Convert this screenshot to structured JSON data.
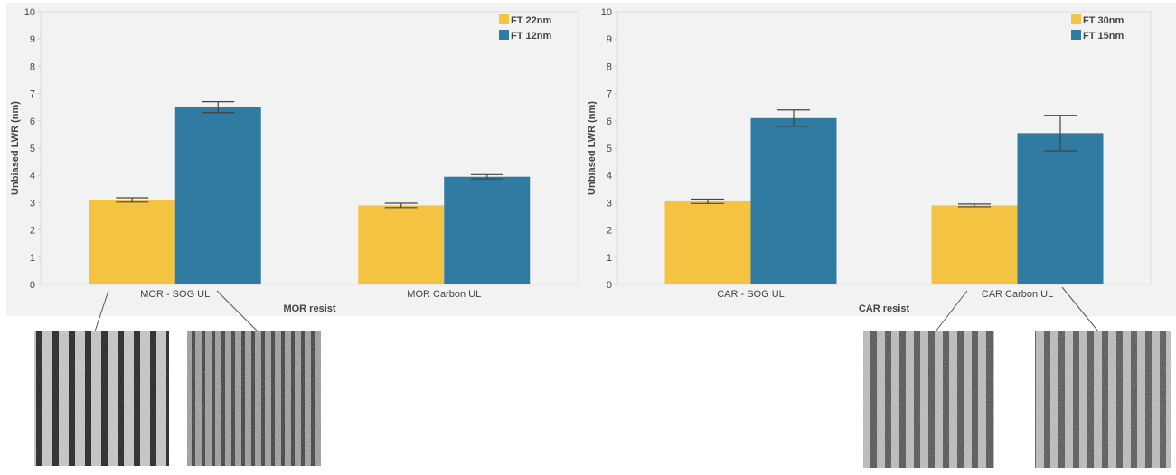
{
  "chart_data": [
    {
      "type": "bar",
      "categories": [
        "MOR - SOG UL",
        "MOR Carbon UL"
      ],
      "x_label": "MOR resist",
      "y_label": "Unbiased LWR (nm)",
      "series": [
        {
          "name": "FT 22nm",
          "color": "#f5c342",
          "values": [
            3.1,
            2.9
          ],
          "errors": [
            0.08,
            0.08
          ]
        },
        {
          "name": "FT 12nm",
          "color": "#2f7ba1",
          "values": [
            6.5,
            3.95
          ],
          "errors": [
            0.2,
            0.08
          ]
        }
      ],
      "ylim": [
        0,
        10
      ],
      "yticks": [
        0,
        1,
        2,
        3,
        4,
        5,
        6,
        7,
        8,
        9,
        10
      ],
      "grid": false,
      "legend": "upper right"
    },
    {
      "type": "bar",
      "categories": [
        "CAR - SOG UL",
        "CAR Carbon UL"
      ],
      "x_label": "CAR resist",
      "y_label": "Unbiased LWR (nm)",
      "series": [
        {
          "name": "FT 30nm",
          "color": "#f5c342",
          "values": [
            3.05,
            2.9
          ],
          "errors": [
            0.08,
            0.05
          ]
        },
        {
          "name": "FT 15nm",
          "color": "#2f7ba1",
          "values": [
            6.1,
            5.55
          ],
          "errors": [
            0.3,
            0.65
          ]
        }
      ],
      "ylim": [
        0,
        10
      ],
      "yticks": [
        0,
        1,
        2,
        3,
        4,
        5,
        6,
        7,
        8,
        9,
        10
      ],
      "grid": false,
      "legend": "upper right"
    }
  ]
}
